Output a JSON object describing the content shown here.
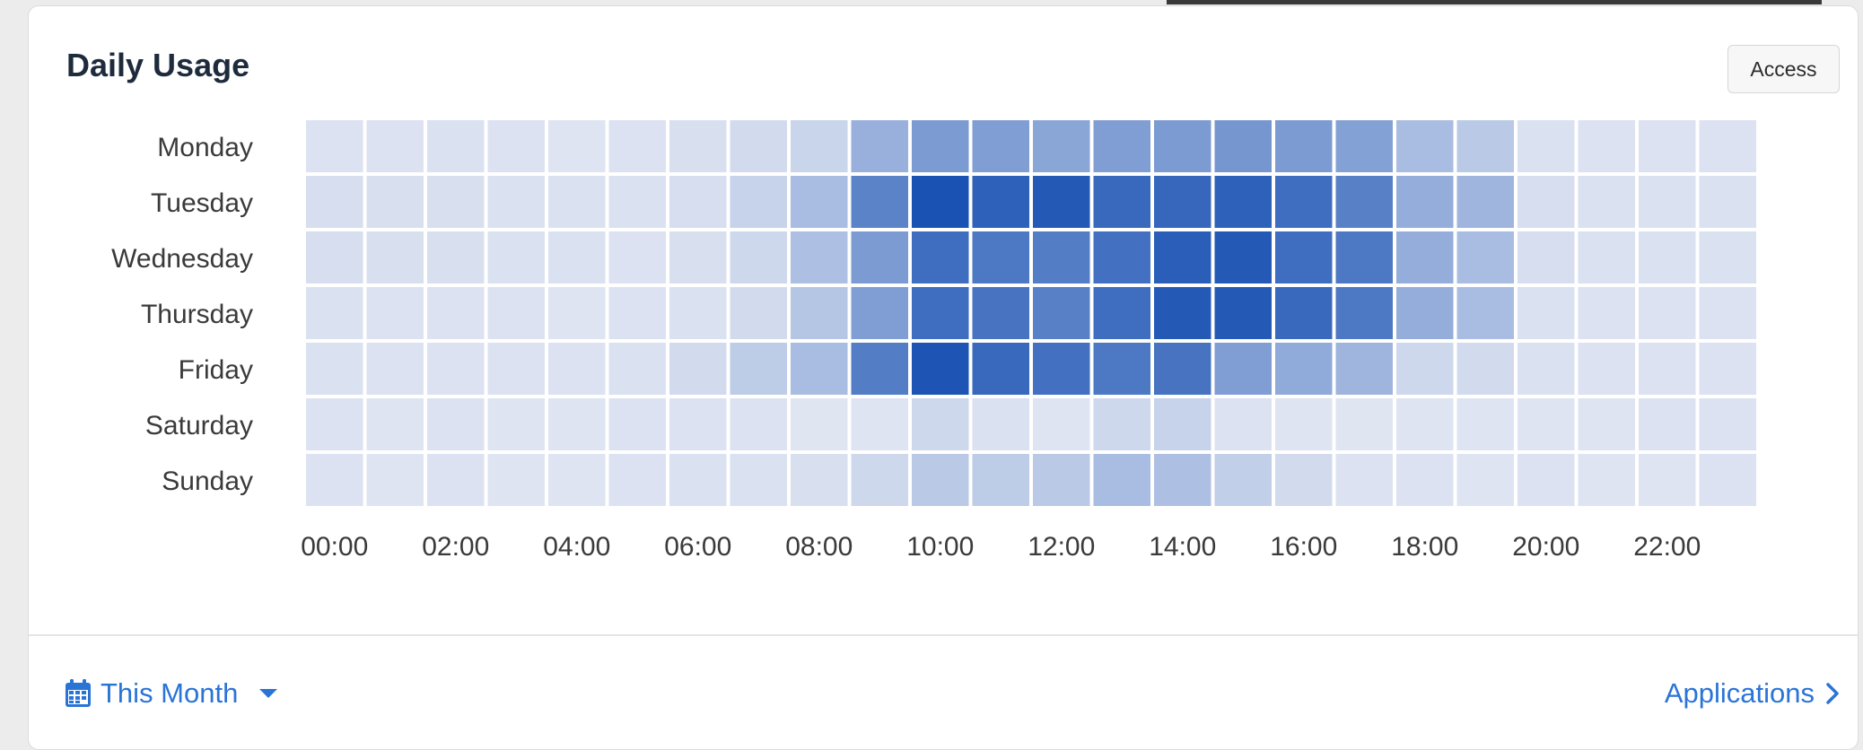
{
  "header": {
    "title": "Daily Usage",
    "access_label": "Access"
  },
  "footer": {
    "range_label": "This Month",
    "link_label": "Applications"
  },
  "colors": {
    "accent": "#2a74d6",
    "low": "#e6eaf4",
    "high": "#1a52b3"
  },
  "icons": {
    "range": "calendar-icon",
    "range_dropdown": "caret-down-icon",
    "link": "chevron-right-icon"
  },
  "chart_data": {
    "type": "heatmap",
    "title": "Daily Usage",
    "rows": [
      "Monday",
      "Tuesday",
      "Wednesday",
      "Thursday",
      "Friday",
      "Saturday",
      "Sunday"
    ],
    "columns": [
      "00:00",
      "01:00",
      "02:00",
      "03:00",
      "04:00",
      "05:00",
      "06:00",
      "07:00",
      "08:00",
      "09:00",
      "10:00",
      "11:00",
      "12:00",
      "13:00",
      "14:00",
      "15:00",
      "16:00",
      "17:00",
      "18:00",
      "19:00",
      "20:00",
      "21:00",
      "22:00",
      "23:00"
    ],
    "tick_labels": [
      "00:00",
      "02:00",
      "04:00",
      "06:00",
      "08:00",
      "10:00",
      "12:00",
      "14:00",
      "16:00",
      "18:00",
      "20:00",
      "22:00"
    ],
    "value_range": [
      0,
      100
    ],
    "values": [
      [
        5,
        5,
        6,
        5,
        4,
        5,
        7,
        10,
        14,
        38,
        52,
        50,
        45,
        50,
        52,
        55,
        52,
        48,
        30,
        22,
        6,
        5,
        5,
        5
      ],
      [
        8,
        7,
        7,
        6,
        6,
        6,
        8,
        15,
        30,
        68,
        100,
        90,
        95,
        85,
        86,
        90,
        82,
        70,
        40,
        35,
        8,
        6,
        6,
        6
      ],
      [
        8,
        7,
        7,
        6,
        6,
        5,
        7,
        12,
        28,
        52,
        82,
        75,
        72,
        80,
        92,
        95,
        82,
        75,
        40,
        30,
        8,
        6,
        6,
        6
      ],
      [
        6,
        5,
        5,
        5,
        4,
        5,
        6,
        10,
        24,
        50,
        82,
        78,
        70,
        82,
        95,
        95,
        85,
        75,
        40,
        30,
        6,
        5,
        5,
        5
      ],
      [
        6,
        5,
        5,
        5,
        5,
        6,
        10,
        20,
        30,
        72,
        98,
        85,
        80,
        75,
        78,
        50,
        42,
        35,
        12,
        10,
        6,
        5,
        5,
        5
      ],
      [
        5,
        4,
        5,
        4,
        4,
        5,
        5,
        5,
        3,
        4,
        12,
        6,
        4,
        12,
        15,
        5,
        4,
        3,
        4,
        4,
        4,
        4,
        5,
        5
      ],
      [
        5,
        4,
        5,
        4,
        4,
        5,
        6,
        6,
        7,
        12,
        22,
        20,
        22,
        30,
        28,
        18,
        10,
        5,
        5,
        4,
        5,
        4,
        4,
        5
      ]
    ]
  }
}
